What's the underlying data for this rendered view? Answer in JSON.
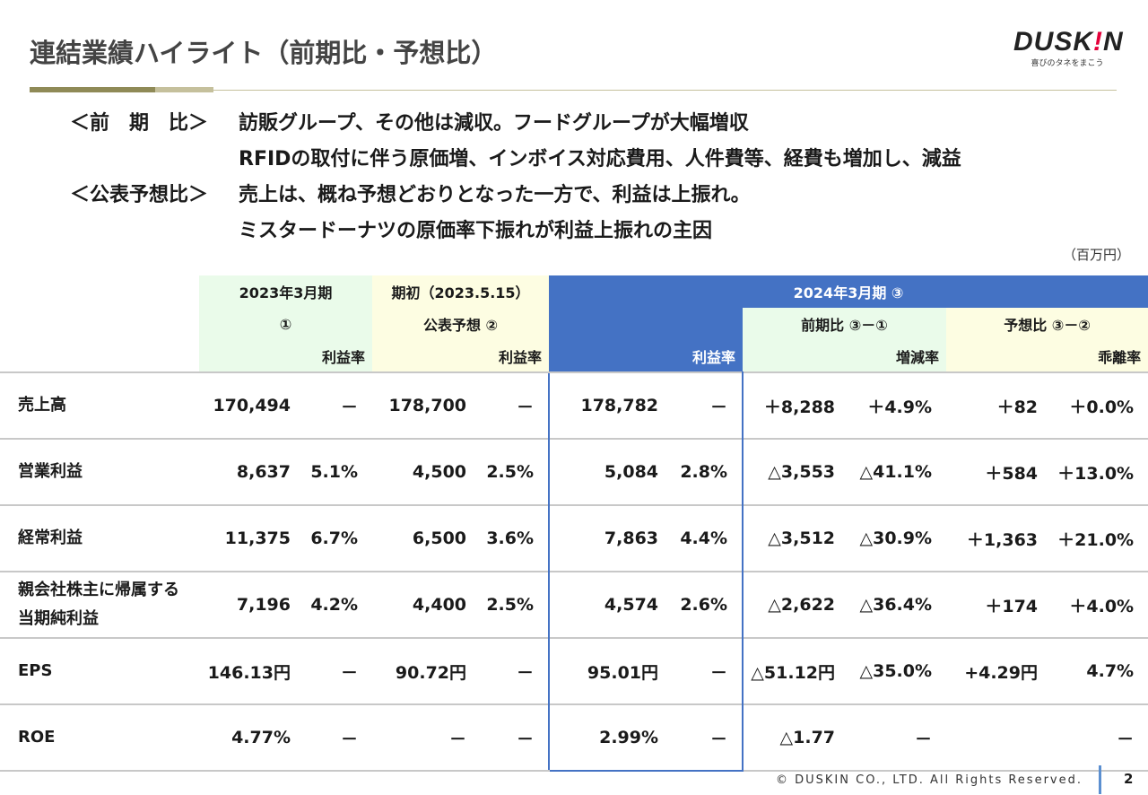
{
  "title": "連結業績ハイライト（前期比・予想比）",
  "logo": {
    "brand": "DUSKIN",
    "tagline": "喜びのタネをまこう"
  },
  "summary": [
    {
      "label": "＜前　期　比＞",
      "text": "訪販グループ、その他は減収。フードグループが大幅増収"
    },
    {
      "label": "",
      "text": "RFIDの取付に伴う原価増、インボイス対応費用、人件費等、経費も増加し、減益"
    },
    {
      "label": "＜公表予想比＞",
      "text": "売上は、概ね予想どおりとなった一方で、利益は上振れ。"
    },
    {
      "label": "",
      "text": "ミスタードーナツの原価率下振れが利益上振れの主因"
    }
  ],
  "unit": "（百万円）",
  "table": {
    "header": {
      "col1_line1": "2023年3月期",
      "col1_line2": "①",
      "col2_line1": "期初（2023.5.15）",
      "col2_line2": "公表予想 ②",
      "col3_line1": "2024年3月期 ③",
      "col4_line2": "前期比 ③－①",
      "col5_line2": "予想比 ③－②",
      "rate1": "利益率",
      "rate2": "利益率",
      "rate3": "利益率",
      "rate4": "増減率",
      "rate5": "乖離率"
    },
    "rows": [
      {
        "label": "売上高",
        "c": [
          "170,494",
          "－",
          "178,700",
          "－",
          "178,782",
          "－",
          "＋8,288",
          "＋4.9%",
          "＋82",
          "＋0.0%"
        ]
      },
      {
        "label": "営業利益",
        "c": [
          "8,637",
          "5.1%",
          "4,500",
          "2.5%",
          "5,084",
          "2.8%",
          "△3,553",
          "△41.1%",
          "＋584",
          "＋13.0%"
        ]
      },
      {
        "label": "経常利益",
        "c": [
          "11,375",
          "6.7%",
          "6,500",
          "3.6%",
          "7,863",
          "4.4%",
          "△3,512",
          "△30.9%",
          "＋1,363",
          "＋21.0%"
        ]
      },
      {
        "label": "親会社株主に帰属する\n当期純利益",
        "c": [
          "7,196",
          "4.2%",
          "4,400",
          "2.5%",
          "4,574",
          "2.6%",
          "△2,622",
          "△36.4%",
          "＋174",
          "＋4.0%"
        ]
      },
      {
        "label": "EPS",
        "c": [
          "146.13円",
          "－",
          "90.72円",
          "－",
          "95.01円",
          "－",
          "△51.12円",
          "△35.0%",
          "+4.29円",
          "4.7%"
        ]
      },
      {
        "label": "ROE",
        "c": [
          "4.77%",
          "－",
          "－",
          "－",
          "2.99%",
          "－",
          "△1.77",
          "－",
          "",
          "－"
        ]
      }
    ]
  },
  "footer": {
    "copyright": "© DUSKIN CO., LTD. All Rights Reserved.",
    "page": "2"
  },
  "colors": {
    "accent_blue": "#4472c4",
    "green_bg": "#eafbea",
    "yellow_bg": "#fdfde2",
    "olive": "#8f8a57",
    "logo_red": "#e4003a"
  }
}
